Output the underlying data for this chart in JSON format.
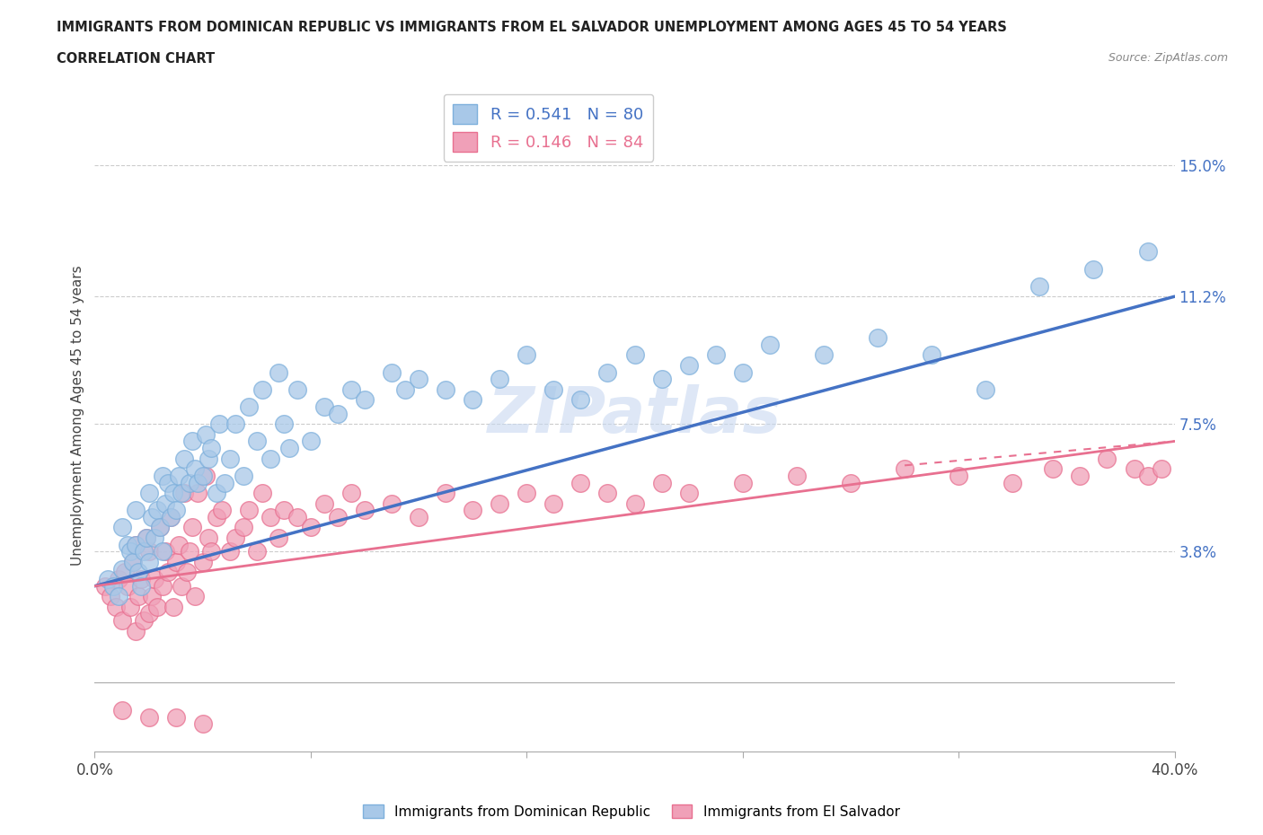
{
  "title_line1": "IMMIGRANTS FROM DOMINICAN REPUBLIC VS IMMIGRANTS FROM EL SALVADOR UNEMPLOYMENT AMONG AGES 45 TO 54 YEARS",
  "title_line2": "CORRELATION CHART",
  "source": "Source: ZipAtlas.com",
  "ylabel": "Unemployment Among Ages 45 to 54 years",
  "xlim": [
    0.0,
    0.4
  ],
  "ylim": [
    -0.02,
    0.175
  ],
  "yticks": [
    0.038,
    0.075,
    0.112,
    0.15
  ],
  "ytick_labels": [
    "3.8%",
    "7.5%",
    "11.2%",
    "15.0%"
  ],
  "xticks": [
    0.0,
    0.08,
    0.16,
    0.24,
    0.32,
    0.4
  ],
  "xtick_labels": [
    "0.0%",
    "",
    "",
    "",
    "",
    "40.0%"
  ],
  "blue_R": 0.541,
  "blue_N": 80,
  "pink_R": 0.146,
  "pink_N": 84,
  "blue_color": "#A8C8E8",
  "pink_color": "#F0A0B8",
  "blue_edge_color": "#7EB0DC",
  "pink_edge_color": "#E87090",
  "blue_line_color": "#4472C4",
  "pink_line_color": "#E87090",
  "legend_label_blue": "Immigrants from Dominican Republic",
  "legend_label_pink": "Immigrants from El Salvador",
  "watermark": "ZIPatlas",
  "blue_scatter_x": [
    0.005,
    0.007,
    0.009,
    0.01,
    0.01,
    0.012,
    0.013,
    0.014,
    0.015,
    0.015,
    0.016,
    0.017,
    0.018,
    0.019,
    0.02,
    0.02,
    0.021,
    0.022,
    0.023,
    0.024,
    0.025,
    0.025,
    0.026,
    0.027,
    0.028,
    0.029,
    0.03,
    0.031,
    0.032,
    0.033,
    0.035,
    0.036,
    0.037,
    0.038,
    0.04,
    0.041,
    0.042,
    0.043,
    0.045,
    0.046,
    0.048,
    0.05,
    0.052,
    0.055,
    0.057,
    0.06,
    0.062,
    0.065,
    0.068,
    0.07,
    0.072,
    0.075,
    0.08,
    0.085,
    0.09,
    0.095,
    0.1,
    0.11,
    0.115,
    0.12,
    0.13,
    0.14,
    0.15,
    0.16,
    0.17,
    0.18,
    0.19,
    0.2,
    0.21,
    0.22,
    0.23,
    0.24,
    0.25,
    0.27,
    0.29,
    0.31,
    0.33,
    0.35,
    0.37,
    0.39
  ],
  "blue_scatter_y": [
    0.03,
    0.028,
    0.025,
    0.033,
    0.045,
    0.04,
    0.038,
    0.035,
    0.04,
    0.05,
    0.032,
    0.028,
    0.038,
    0.042,
    0.035,
    0.055,
    0.048,
    0.042,
    0.05,
    0.045,
    0.038,
    0.06,
    0.052,
    0.058,
    0.048,
    0.055,
    0.05,
    0.06,
    0.055,
    0.065,
    0.058,
    0.07,
    0.062,
    0.058,
    0.06,
    0.072,
    0.065,
    0.068,
    0.055,
    0.075,
    0.058,
    0.065,
    0.075,
    0.06,
    0.08,
    0.07,
    0.085,
    0.065,
    0.09,
    0.075,
    0.068,
    0.085,
    0.07,
    0.08,
    0.078,
    0.085,
    0.082,
    0.09,
    0.085,
    0.088,
    0.085,
    0.082,
    0.088,
    0.095,
    0.085,
    0.082,
    0.09,
    0.095,
    0.088,
    0.092,
    0.095,
    0.09,
    0.098,
    0.095,
    0.1,
    0.095,
    0.085,
    0.115,
    0.12,
    0.125
  ],
  "pink_scatter_x": [
    0.004,
    0.006,
    0.008,
    0.009,
    0.01,
    0.011,
    0.012,
    0.013,
    0.014,
    0.015,
    0.015,
    0.016,
    0.017,
    0.018,
    0.019,
    0.02,
    0.02,
    0.021,
    0.022,
    0.023,
    0.024,
    0.025,
    0.026,
    0.027,
    0.028,
    0.029,
    0.03,
    0.031,
    0.032,
    0.033,
    0.034,
    0.035,
    0.036,
    0.037,
    0.038,
    0.04,
    0.041,
    0.042,
    0.043,
    0.045,
    0.047,
    0.05,
    0.052,
    0.055,
    0.057,
    0.06,
    0.062,
    0.065,
    0.068,
    0.07,
    0.075,
    0.08,
    0.085,
    0.09,
    0.095,
    0.1,
    0.11,
    0.12,
    0.13,
    0.14,
    0.15,
    0.16,
    0.17,
    0.18,
    0.19,
    0.2,
    0.21,
    0.22,
    0.24,
    0.26,
    0.28,
    0.3,
    0.32,
    0.34,
    0.355,
    0.365,
    0.375,
    0.385,
    0.39,
    0.395,
    0.01,
    0.02,
    0.03,
    0.04
  ],
  "pink_scatter_y": [
    0.028,
    0.025,
    0.022,
    0.03,
    0.018,
    0.032,
    0.028,
    0.022,
    0.035,
    0.015,
    0.04,
    0.025,
    0.03,
    0.018,
    0.042,
    0.02,
    0.038,
    0.025,
    0.03,
    0.022,
    0.045,
    0.028,
    0.038,
    0.032,
    0.048,
    0.022,
    0.035,
    0.04,
    0.028,
    0.055,
    0.032,
    0.038,
    0.045,
    0.025,
    0.055,
    0.035,
    0.06,
    0.042,
    0.038,
    0.048,
    0.05,
    0.038,
    0.042,
    0.045,
    0.05,
    0.038,
    0.055,
    0.048,
    0.042,
    0.05,
    0.048,
    0.045,
    0.052,
    0.048,
    0.055,
    0.05,
    0.052,
    0.048,
    0.055,
    0.05,
    0.052,
    0.055,
    0.052,
    0.058,
    0.055,
    0.052,
    0.058,
    0.055,
    0.058,
    0.06,
    0.058,
    0.062,
    0.06,
    0.058,
    0.062,
    0.06,
    0.065,
    0.062,
    0.06,
    0.062,
    -0.008,
    -0.01,
    -0.01,
    -0.012
  ],
  "blue_trend_x": [
    0.0,
    0.4
  ],
  "blue_trend_y": [
    0.028,
    0.112
  ],
  "pink_trend_x": [
    0.0,
    0.4
  ],
  "pink_trend_y": [
    0.028,
    0.07
  ]
}
